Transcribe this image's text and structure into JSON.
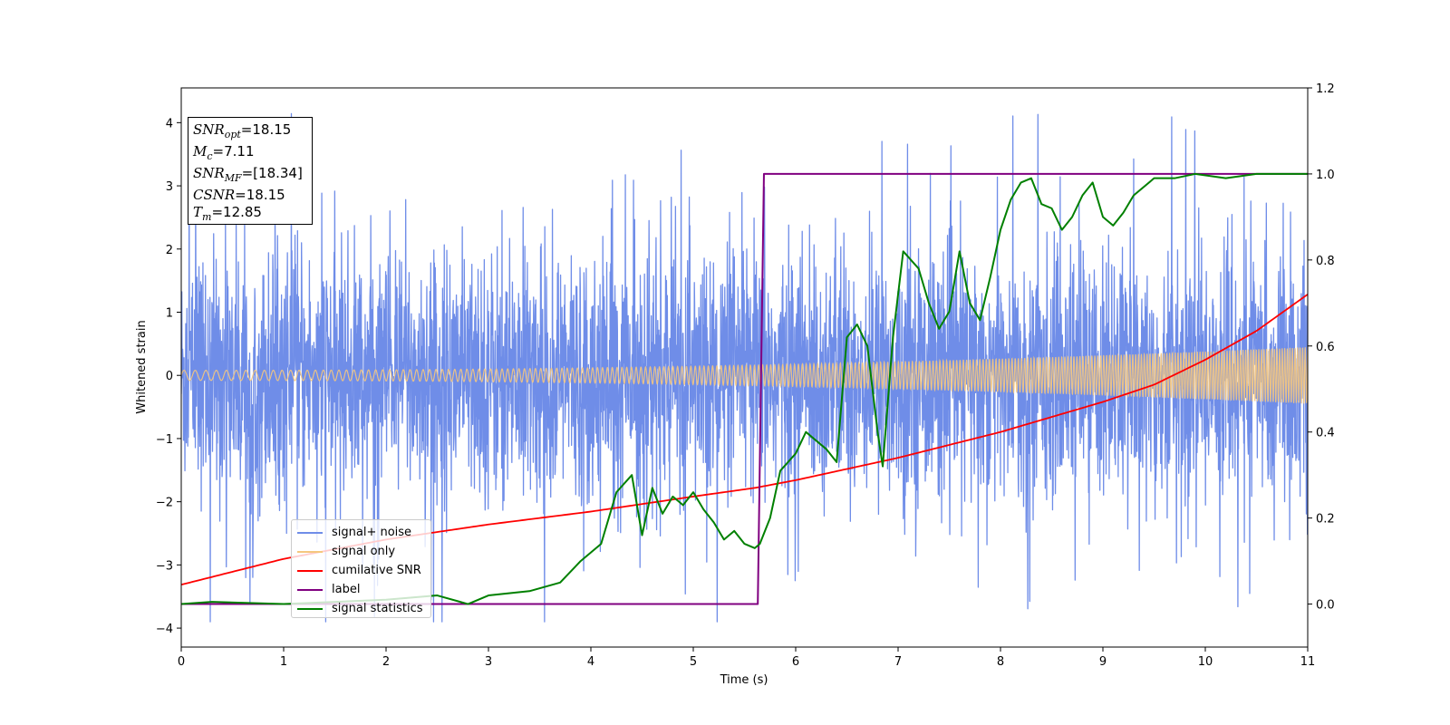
{
  "chart_data": {
    "type": "line",
    "title": "",
    "xlabel": "Time (s)",
    "ylabel": "Whitened strain",
    "xlim": [
      0,
      11
    ],
    "ylim_left": [
      -4.3,
      4.55
    ],
    "ylim_right": [
      -0.1,
      1.2
    ],
    "x_ticks": [
      "0",
      "1",
      "2",
      "3",
      "4",
      "5",
      "6",
      "7",
      "8",
      "9",
      "10",
      "11"
    ],
    "y_ticks_left": [
      "4",
      "3",
      "2",
      "1",
      "0",
      "−1",
      "−2",
      "−3",
      "−4"
    ],
    "y_ticks_right": [
      "1.2",
      "1.0",
      "0.8",
      "0.6",
      "0.4",
      "0.2",
      "0.0"
    ],
    "grid": false,
    "legend_position": "lower-left",
    "stats": {
      "snr_opt": "=18.15",
      "mc": "=7.11",
      "snr_mf": "=[18.34]",
      "csnr": "=18.15",
      "tm": "=12.85"
    },
    "legend": [
      "signal+ noise",
      "signal only",
      "cumilative SNR",
      "label",
      "signal statistics"
    ],
    "colors": {
      "signal_noise": "#6f8de8",
      "signal_only": "#f5c77e",
      "cumulative_snr": "#ff0000",
      "label": "#800080",
      "signal_statistics": "#008000"
    },
    "series": [
      {
        "name": "signal+ noise",
        "axis": "left",
        "kind": "noise",
        "std": 0.95,
        "spikes_max": 4.2
      },
      {
        "name": "signal only",
        "axis": "left",
        "kind": "chirp",
        "amplitude_start": 0.08,
        "amplitude_end": 0.45,
        "x_end": 11
      },
      {
        "name": "cumilative SNR",
        "axis": "right",
        "x": [
          0,
          1,
          2,
          3,
          4,
          5,
          5.6,
          6,
          7,
          8,
          9,
          9.5,
          10,
          10.5,
          11
        ],
        "y": [
          0.045,
          0.105,
          0.15,
          0.185,
          0.215,
          0.25,
          0.27,
          0.288,
          0.34,
          0.4,
          0.47,
          0.51,
          0.568,
          0.635,
          0.72
        ]
      },
      {
        "name": "label",
        "axis": "right",
        "x": [
          0,
          5.63,
          5.69,
          11
        ],
        "y": [
          0.0,
          0.0,
          1.0,
          1.0
        ]
      },
      {
        "name": "signal statistics",
        "axis": "right",
        "x": [
          0,
          0.3,
          1.0,
          2.0,
          2.5,
          2.8,
          3.0,
          3.4,
          3.7,
          3.9,
          4.1,
          4.25,
          4.4,
          4.5,
          4.6,
          4.7,
          4.8,
          4.9,
          5.0,
          5.1,
          5.2,
          5.3,
          5.4,
          5.5,
          5.6,
          5.65,
          5.75,
          5.85,
          6.0,
          6.1,
          6.2,
          6.3,
          6.4,
          6.5,
          6.6,
          6.7,
          6.8,
          6.85,
          6.95,
          7.05,
          7.2,
          7.3,
          7.4,
          7.5,
          7.6,
          7.7,
          7.8,
          7.9,
          8.0,
          8.1,
          8.2,
          8.3,
          8.4,
          8.5,
          8.6,
          8.7,
          8.8,
          8.9,
          9.0,
          9.1,
          9.2,
          9.3,
          9.5,
          9.7,
          9.9,
          10.2,
          10.5,
          10.8,
          11.0
        ],
        "y": [
          0.0,
          0.005,
          0.0,
          0.01,
          0.02,
          0.0,
          0.02,
          0.03,
          0.05,
          0.1,
          0.14,
          0.26,
          0.3,
          0.16,
          0.27,
          0.21,
          0.25,
          0.23,
          0.26,
          0.22,
          0.19,
          0.15,
          0.17,
          0.14,
          0.13,
          0.14,
          0.2,
          0.31,
          0.35,
          0.4,
          0.38,
          0.36,
          0.33,
          0.62,
          0.65,
          0.6,
          0.4,
          0.32,
          0.62,
          0.82,
          0.78,
          0.7,
          0.64,
          0.68,
          0.82,
          0.7,
          0.66,
          0.76,
          0.87,
          0.94,
          0.98,
          0.99,
          0.93,
          0.92,
          0.87,
          0.9,
          0.95,
          0.98,
          0.9,
          0.88,
          0.91,
          0.95,
          0.99,
          0.99,
          1.0,
          0.99,
          1.0,
          1.0,
          1.0
        ]
      }
    ]
  }
}
